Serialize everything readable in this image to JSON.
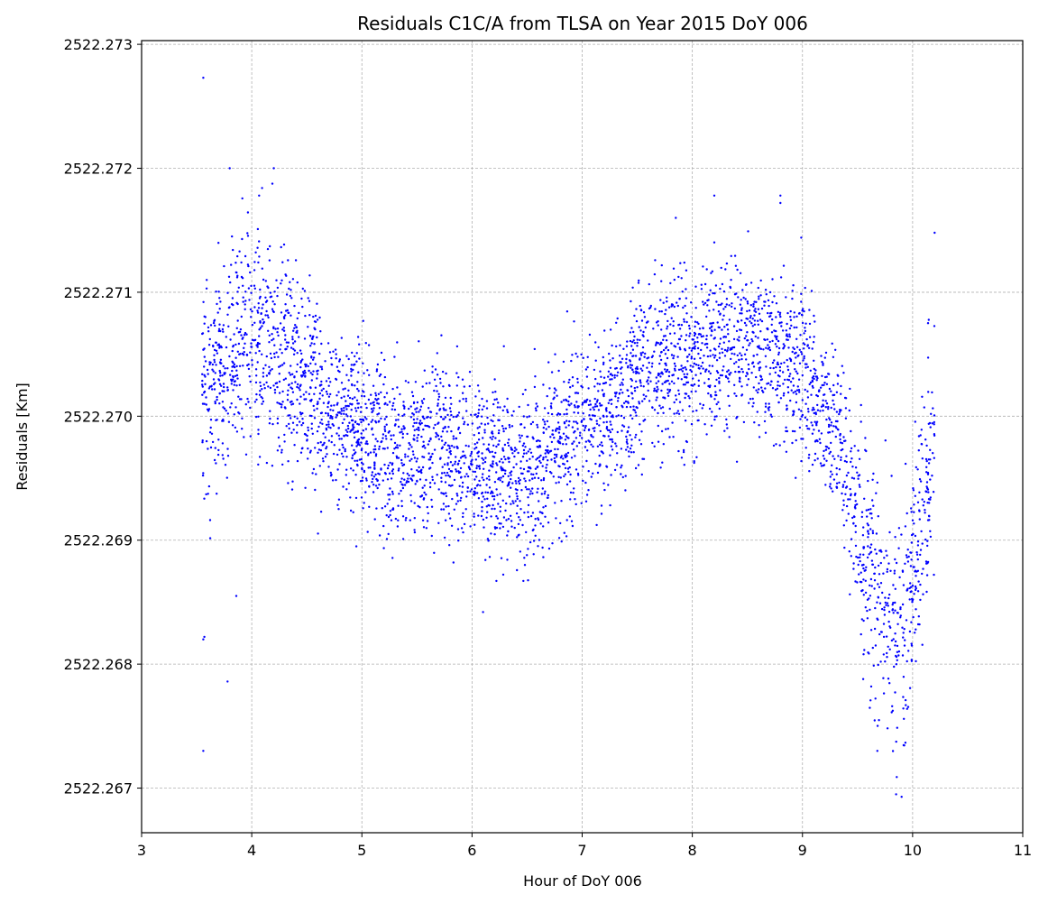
{
  "chart_data": {
    "type": "scatter",
    "title": "Residuals C1C/A from TLSA on Year 2015 DoY 006",
    "xlabel": "Hour of DoY 006",
    "ylabel": "Residuals [Km]",
    "xlim": [
      3,
      11
    ],
    "ylim": [
      2522.26664,
      2522.27303
    ],
    "xticks": [
      "3",
      "4",
      "5",
      "6",
      "7",
      "8",
      "9",
      "10",
      "11"
    ],
    "yticks": [
      "2522.267",
      "2522.268",
      "2522.269",
      "2522.270",
      "2522.271",
      "2522.272",
      "2522.273"
    ],
    "grid": true,
    "marker_color": "#0000ff",
    "x_range": [
      3.55,
      10.2
    ],
    "trend": [
      {
        "x": 3.6,
        "y": 2522.2703
      },
      {
        "x": 4.0,
        "y": 2522.2707
      },
      {
        "x": 4.3,
        "y": 2522.2705
      },
      {
        "x": 4.6,
        "y": 2522.2701
      },
      {
        "x": 5.0,
        "y": 2522.2699
      },
      {
        "x": 5.3,
        "y": 2522.26965
      },
      {
        "x": 5.7,
        "y": 2522.2698
      },
      {
        "x": 6.0,
        "y": 2522.2696
      },
      {
        "x": 6.5,
        "y": 2522.26955
      },
      {
        "x": 7.0,
        "y": 2522.2699
      },
      {
        "x": 7.3,
        "y": 2522.2701
      },
      {
        "x": 7.6,
        "y": 2522.2704
      },
      {
        "x": 8.0,
        "y": 2522.2705
      },
      {
        "x": 8.5,
        "y": 2522.27065
      },
      {
        "x": 8.9,
        "y": 2522.2704
      },
      {
        "x": 9.2,
        "y": 2522.2701
      },
      {
        "x": 9.4,
        "y": 2522.2697
      },
      {
        "x": 9.55,
        "y": 2522.2689
      },
      {
        "x": 9.75,
        "y": 2522.2685
      },
      {
        "x": 9.9,
        "y": 2522.2681
      },
      {
        "x": 10.0,
        "y": 2522.2688
      },
      {
        "x": 10.1,
        "y": 2522.2693
      },
      {
        "x": 10.2,
        "y": 2522.2699
      }
    ],
    "outliers": [
      {
        "x": 3.56,
        "y": 2522.27273
      },
      {
        "x": 3.8,
        "y": 2522.272
      },
      {
        "x": 4.2,
        "y": 2522.272
      },
      {
        "x": 3.56,
        "y": 2522.2673
      },
      {
        "x": 3.56,
        "y": 2522.2682
      },
      {
        "x": 3.57,
        "y": 2522.26822
      },
      {
        "x": 3.78,
        "y": 2522.26786
      },
      {
        "x": 3.86,
        "y": 2522.26855
      },
      {
        "x": 8.2,
        "y": 2522.27178
      },
      {
        "x": 8.8,
        "y": 2522.27178
      },
      {
        "x": 8.8,
        "y": 2522.27172
      },
      {
        "x": 7.85,
        "y": 2522.2716
      },
      {
        "x": 6.1,
        "y": 2522.26842
      },
      {
        "x": 9.85,
        "y": 2522.26695
      },
      {
        "x": 9.9,
        "y": 2522.26693
      },
      {
        "x": 10.2,
        "y": 2522.27148
      },
      {
        "x": 4.95,
        "y": 2522.26895
      },
      {
        "x": 9.68,
        "y": 2522.2673
      }
    ]
  }
}
